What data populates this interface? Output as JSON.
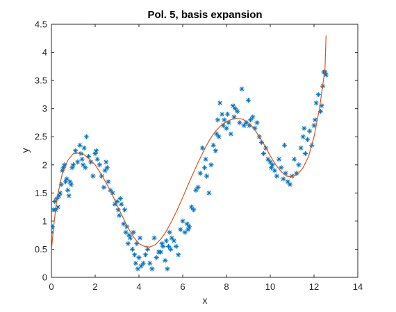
{
  "chart_data": {
    "type": "scatter",
    "title": "Pol. 5, basis expansion",
    "xlabel": "x",
    "ylabel": "y",
    "xlim": [
      0,
      14
    ],
    "ylim": [
      0,
      4.5
    ],
    "xticks": [
      0,
      2,
      4,
      6,
      8,
      10,
      12,
      14
    ],
    "yticks": [
      0,
      0.5,
      1,
      1.5,
      2,
      2.5,
      3,
      3.5,
      4,
      4.5
    ],
    "grid": false,
    "legend": "none",
    "series": [
      {
        "type": "scatter",
        "marker": "asterisk",
        "color": "#0072BD",
        "x": [
          0.0,
          0.05,
          0.1,
          0.15,
          0.2,
          0.25,
          0.3,
          0.35,
          0.4,
          0.45,
          0.5,
          0.55,
          0.6,
          0.65,
          0.7,
          0.75,
          0.8,
          0.85,
          0.9,
          0.95,
          1.0,
          1.1,
          1.2,
          1.3,
          1.35,
          1.4,
          1.45,
          1.5,
          1.55,
          1.6,
          1.7,
          1.8,
          1.9,
          2.0,
          2.05,
          2.1,
          2.2,
          2.3,
          2.4,
          2.45,
          2.5,
          2.55,
          2.6,
          2.7,
          2.8,
          2.9,
          3.0,
          3.05,
          3.1,
          3.15,
          3.2,
          3.3,
          3.35,
          3.4,
          3.45,
          3.5,
          3.55,
          3.6,
          3.7,
          3.75,
          3.8,
          3.85,
          3.9,
          3.95,
          4.0,
          4.05,
          4.1,
          4.2,
          4.3,
          4.4,
          4.5,
          4.6,
          4.7,
          4.8,
          4.9,
          5.0,
          5.05,
          5.1,
          5.2,
          5.25,
          5.3,
          5.35,
          5.4,
          5.45,
          5.5,
          5.6,
          5.7,
          5.8,
          5.9,
          6.0,
          6.1,
          6.2,
          6.25,
          6.3,
          6.4,
          6.5,
          6.6,
          6.7,
          6.8,
          6.9,
          7.0,
          7.05,
          7.1,
          7.2,
          7.3,
          7.4,
          7.5,
          7.55,
          7.6,
          7.65,
          7.7,
          7.8,
          7.85,
          7.9,
          8.0,
          8.05,
          8.1,
          8.2,
          8.3,
          8.35,
          8.4,
          8.5,
          8.6,
          8.7,
          8.8,
          8.9,
          9.0,
          9.05,
          9.1,
          9.2,
          9.3,
          9.4,
          9.5,
          9.6,
          9.7,
          9.8,
          9.9,
          10.0,
          10.05,
          10.1,
          10.2,
          10.3,
          10.4,
          10.5,
          10.6,
          10.65,
          10.7,
          10.8,
          10.9,
          11.0,
          11.1,
          11.2,
          11.3,
          11.4,
          11.5,
          11.55,
          11.6,
          11.7,
          11.8,
          11.9,
          12.0,
          12.05,
          12.1,
          12.2,
          12.3,
          12.35,
          12.4,
          12.45,
          12.5,
          12.55
        ],
        "y": [
          0.8,
          0.9,
          1.2,
          1.35,
          1.2,
          1.4,
          1.25,
          1.45,
          1.5,
          1.65,
          1.9,
          1.95,
          2.0,
          1.7,
          1.75,
          1.55,
          1.45,
          1.7,
          1.65,
          1.95,
          2.0,
          2.25,
          2.05,
          2.35,
          2.2,
          2.1,
          2.0,
          2.3,
          1.95,
          2.5,
          2.15,
          2.05,
          1.8,
          2.2,
          2.25,
          2.1,
          2.0,
          1.8,
          1.6,
          1.9,
          2.05,
          1.95,
          1.7,
          1.55,
          1.5,
          1.3,
          1.35,
          1.2,
          1.1,
          1.4,
          1.3,
          0.95,
          1.2,
          0.8,
          0.9,
          0.6,
          0.75,
          0.7,
          0.5,
          0.8,
          0.4,
          0.25,
          0.6,
          0.15,
          0.35,
          0.7,
          0.2,
          0.25,
          0.4,
          0.5,
          0.25,
          0.15,
          0.7,
          0.35,
          0.45,
          0.45,
          0.6,
          0.55,
          0.3,
          0.65,
          0.15,
          0.55,
          0.8,
          0.5,
          0.7,
          0.65,
          0.55,
          0.4,
          0.85,
          1.0,
          0.8,
          0.95,
          0.85,
          0.9,
          1.25,
          1.2,
          1.55,
          1.6,
          1.85,
          2.3,
          1.95,
          2.1,
          1.8,
          1.5,
          2.0,
          2.35,
          2.25,
          2.55,
          2.8,
          2.5,
          3.1,
          2.9,
          2.7,
          2.8,
          2.65,
          2.9,
          2.75,
          2.55,
          3.05,
          2.85,
          3.0,
          2.95,
          2.75,
          3.35,
          2.7,
          2.75,
          3.15,
          2.7,
          2.8,
          2.85,
          2.65,
          2.75,
          2.5,
          2.4,
          2.2,
          2.3,
          2.1,
          2.05,
          1.95,
          2.0,
          1.9,
          1.8,
          2.1,
          1.95,
          1.75,
          2.35,
          1.85,
          1.7,
          1.65,
          1.8,
          2.1,
          1.85,
          2.0,
          2.3,
          2.5,
          2.65,
          2.2,
          2.45,
          2.6,
          2.35,
          2.7,
          2.8,
          3.1,
          3.25,
          2.95,
          3.05,
          3.4,
          3.65,
          3.65,
          3.6
        ]
      },
      {
        "type": "line",
        "color": "#D95319",
        "x": [
          0.0,
          0.1,
          0.25,
          0.5,
          0.75,
          1.0,
          1.25,
          1.5,
          1.75,
          2.0,
          2.25,
          2.5,
          2.75,
          3.0,
          3.25,
          3.5,
          3.75,
          4.0,
          4.25,
          4.5,
          4.75,
          5.0,
          5.25,
          5.5,
          5.75,
          6.0,
          6.25,
          6.5,
          6.75,
          7.0,
          7.25,
          7.5,
          7.75,
          8.0,
          8.25,
          8.5,
          8.75,
          9.0,
          9.25,
          9.5,
          9.75,
          10.0,
          10.25,
          10.5,
          10.75,
          11.0,
          11.25,
          11.5,
          11.75,
          12.0,
          12.25,
          12.5,
          12.55
        ],
        "y": [
          0.48,
          0.9,
          1.4,
          1.85,
          2.08,
          2.2,
          2.21,
          2.18,
          2.1,
          2.0,
          1.85,
          1.68,
          1.5,
          1.28,
          1.08,
          0.88,
          0.72,
          0.6,
          0.55,
          0.54,
          0.58,
          0.68,
          0.82,
          1.0,
          1.2,
          1.42,
          1.65,
          1.87,
          2.08,
          2.28,
          2.46,
          2.6,
          2.7,
          2.77,
          2.81,
          2.83,
          2.81,
          2.75,
          2.65,
          2.5,
          2.34,
          2.16,
          2.0,
          1.88,
          1.8,
          1.79,
          1.83,
          1.95,
          2.15,
          2.5,
          3.0,
          3.7,
          4.3
        ]
      }
    ]
  }
}
